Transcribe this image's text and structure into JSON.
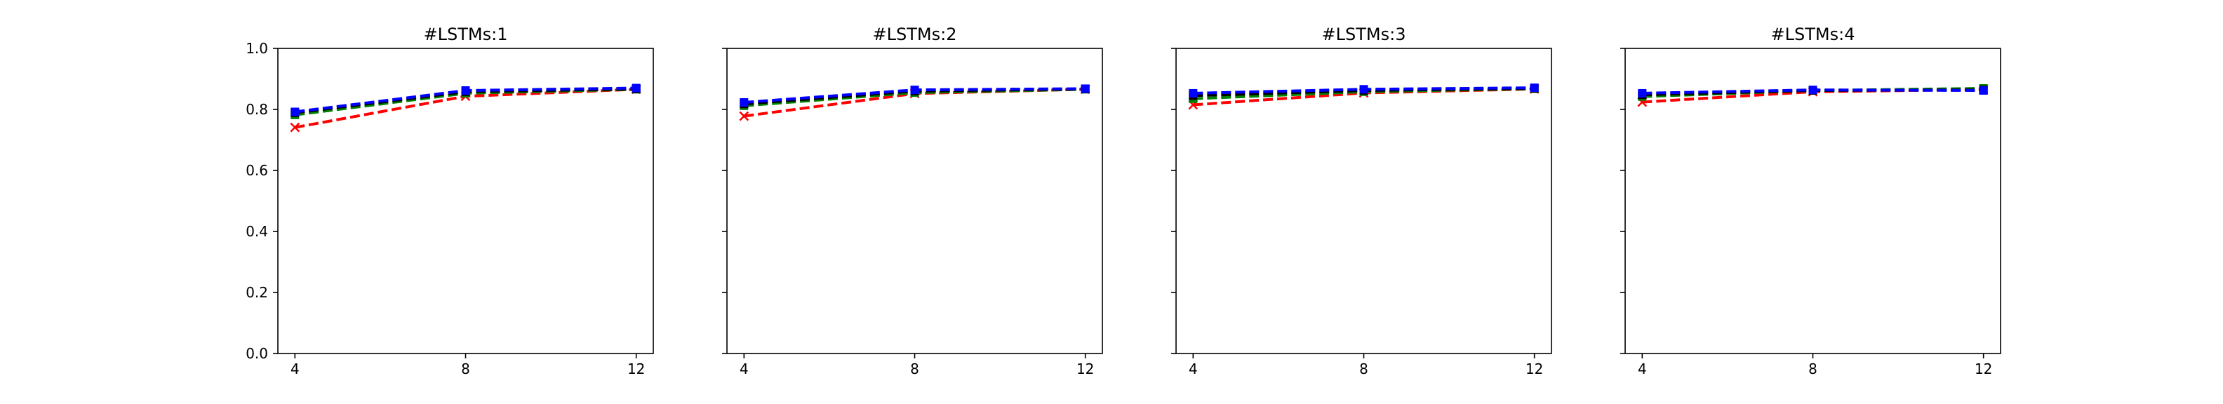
{
  "chart_data": [
    {
      "type": "line",
      "title": "#LSTMs:1",
      "xlabel": "",
      "ylabel": "",
      "x": [
        4,
        8,
        12
      ],
      "xticks": [
        "4",
        "8",
        "12"
      ],
      "yticks": [
        "0.0",
        "0.2",
        "0.4",
        "0.6",
        "0.8",
        "1.0"
      ],
      "xlim": [
        3.6,
        12.4
      ],
      "ylim": [
        0.0,
        1.0
      ],
      "grid": false,
      "series": [
        {
          "color": "#ff0000",
          "marker": "x",
          "values": [
            0.741,
            0.843,
            0.866
          ]
        },
        {
          "color": "#008000",
          "marker": "s",
          "values": [
            0.782,
            0.853,
            0.866
          ]
        },
        {
          "color": "#000000",
          "marker": "s",
          "values": [
            0.789,
            0.858,
            0.867
          ]
        },
        {
          "color": "#0000ff",
          "marker": "s",
          "values": [
            0.792,
            0.862,
            0.87
          ]
        }
      ]
    },
    {
      "type": "line",
      "title": "#LSTMs:2",
      "xlabel": "",
      "ylabel": "",
      "x": [
        4,
        8,
        12
      ],
      "xticks": [
        "4",
        "8",
        "12"
      ],
      "yticks": [],
      "xlim": [
        3.6,
        12.4
      ],
      "ylim": [
        0.0,
        1.0
      ],
      "grid": false,
      "series": [
        {
          "color": "#ff0000",
          "marker": "x",
          "values": [
            0.778,
            0.852,
            0.866
          ]
        },
        {
          "color": "#008000",
          "marker": "s",
          "values": [
            0.812,
            0.855,
            0.866
          ]
        },
        {
          "color": "#000000",
          "marker": "s",
          "values": [
            0.818,
            0.86,
            0.867
          ]
        },
        {
          "color": "#0000ff",
          "marker": "s",
          "values": [
            0.823,
            0.864,
            0.868
          ]
        }
      ]
    },
    {
      "type": "line",
      "title": "#LSTMs:3",
      "xlabel": "",
      "ylabel": "",
      "x": [
        4,
        8,
        12
      ],
      "xticks": [
        "4",
        "8",
        "12"
      ],
      "yticks": [],
      "xlim": [
        3.6,
        12.4
      ],
      "ylim": [
        0.0,
        1.0
      ],
      "grid": false,
      "series": [
        {
          "color": "#ff0000",
          "marker": "x",
          "values": [
            0.815,
            0.854,
            0.867
          ]
        },
        {
          "color": "#008000",
          "marker": "s",
          "values": [
            0.835,
            0.858,
            0.868
          ]
        },
        {
          "color": "#000000",
          "marker": "s",
          "values": [
            0.845,
            0.862,
            0.869
          ]
        },
        {
          "color": "#0000ff",
          "marker": "s",
          "values": [
            0.853,
            0.866,
            0.871
          ]
        }
      ]
    },
    {
      "type": "line",
      "title": "#LSTMs:4",
      "xlabel": "",
      "ylabel": "",
      "x": [
        4,
        8,
        12
      ],
      "xticks": [
        "4",
        "8",
        "12"
      ],
      "yticks": [],
      "xlim": [
        3.6,
        12.4
      ],
      "ylim": [
        0.0,
        1.0
      ],
      "grid": false,
      "series": [
        {
          "color": "#ff0000",
          "marker": "x",
          "values": [
            0.824,
            0.858,
            0.865
          ]
        },
        {
          "color": "#008000",
          "marker": "s",
          "values": [
            0.842,
            0.862,
            0.869
          ]
        },
        {
          "color": "#000000",
          "marker": "s",
          "values": [
            0.848,
            0.862,
            0.864
          ]
        },
        {
          "color": "#0000ff",
          "marker": "s",
          "values": [
            0.853,
            0.864,
            0.862
          ]
        }
      ]
    }
  ]
}
